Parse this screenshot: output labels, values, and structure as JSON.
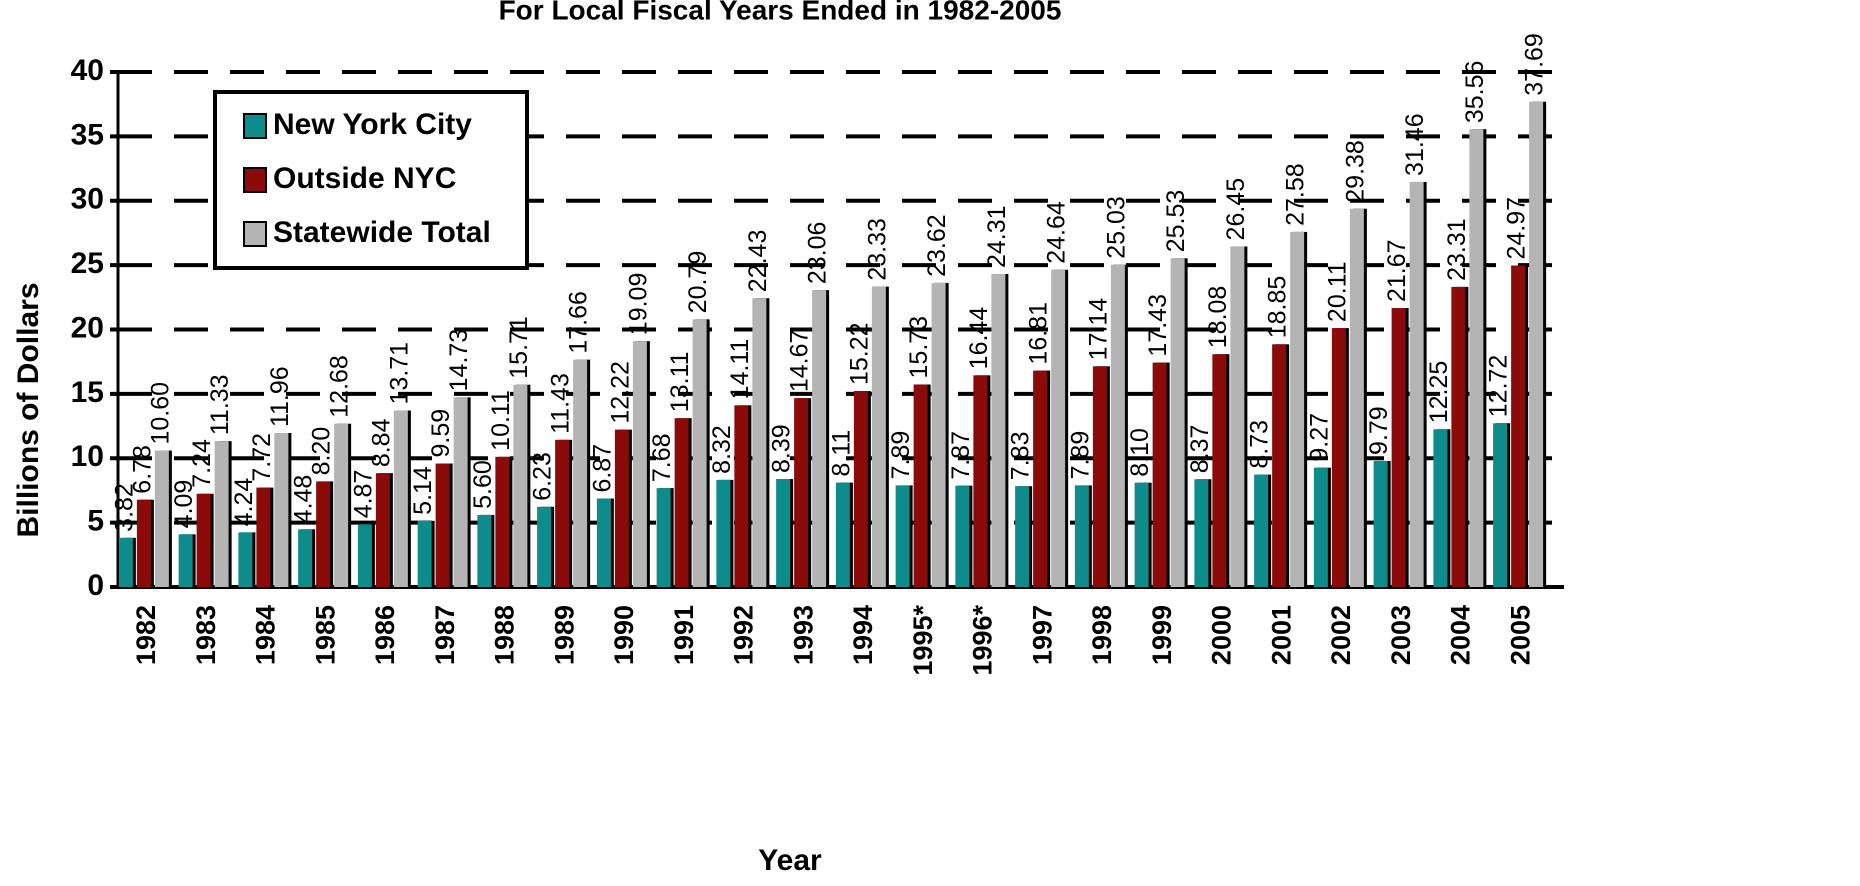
{
  "chart_data": {
    "type": "bar",
    "title": "For Local Fiscal Years Ended in 1982-2005",
    "x_label": "Year",
    "y_label": "Billions of Dollars",
    "categories": [
      "1982",
      "1983",
      "1984",
      "1985",
      "1986",
      "1987",
      "1988",
      "1989",
      "1990",
      "1991",
      "1992",
      "1993",
      "1994",
      "1995*",
      "1996*",
      "1997",
      "1998",
      "1999",
      "2000",
      "2001",
      "2002",
      "2003",
      "2004",
      "2005"
    ],
    "series": [
      {
        "name": "New York City",
        "color": "#0e8b8b",
        "values": [
          3.82,
          4.09,
          4.24,
          4.48,
          4.87,
          5.14,
          5.6,
          6.23,
          6.87,
          7.68,
          8.32,
          8.39,
          8.11,
          7.89,
          7.87,
          7.83,
          7.89,
          8.1,
          8.37,
          8.73,
          9.27,
          9.79,
          12.25,
          12.72
        ],
        "value_labels": [
          "3.82",
          "4.09",
          "4.24",
          "4.48",
          "4.87",
          "5.14",
          "5.60",
          "6.23",
          "6.87",
          "7.68",
          "8.32",
          "8.39",
          "8.11",
          "7.89",
          "7.87",
          "7.83",
          "7.89",
          "8.10",
          "8.37",
          "8.73",
          "9.27",
          "9.79",
          "12.25",
          "12.72"
        ]
      },
      {
        "name": "Outside NYC",
        "color": "#8b0a0a",
        "values": [
          6.78,
          7.24,
          7.72,
          8.2,
          8.84,
          9.59,
          10.11,
          11.43,
          12.22,
          13.11,
          14.11,
          14.67,
          15.22,
          15.73,
          16.44,
          16.81,
          17.14,
          17.43,
          18.08,
          18.85,
          20.11,
          21.67,
          23.31,
          24.97
        ],
        "value_labels": [
          "6.78",
          "7.24",
          "7.72",
          "8.20",
          "8.84",
          "9.59",
          "10.11",
          "11.43",
          "12.22",
          "13.11",
          "14.11",
          "14.67",
          "15.22",
          "15.73",
          "16.44",
          "16.81",
          "17.14",
          "17.43",
          "18.08",
          "18.85",
          "20.11",
          "21.67",
          "23.31",
          "24.97"
        ]
      },
      {
        "name": "Statewide Total",
        "color": "#b4b4b4",
        "values": [
          10.6,
          11.33,
          11.96,
          12.68,
          13.71,
          14.73,
          15.71,
          17.66,
          19.09,
          20.79,
          22.43,
          23.06,
          23.33,
          23.62,
          24.31,
          24.64,
          25.03,
          25.53,
          26.45,
          27.58,
          29.38,
          31.46,
          35.56,
          37.69
        ],
        "value_labels": [
          "10.60",
          "11.33",
          "11.96",
          "12.68",
          "13.71",
          "14.73",
          "15.71",
          "17.66",
          "19.09",
          "20.79",
          "22.43",
          "23.06",
          "23.33",
          "23.62",
          "24.31",
          "24.64",
          "25.03",
          "25.53",
          "26.45",
          "27.58",
          "29.38",
          "31.46",
          "35.56",
          "37.69"
        ]
      }
    ],
    "ylim": [
      0,
      40
    ],
    "yticks": [
      0,
      5,
      10,
      15,
      20,
      25,
      30,
      35,
      40
    ],
    "grid": true,
    "legend": "upper left"
  }
}
